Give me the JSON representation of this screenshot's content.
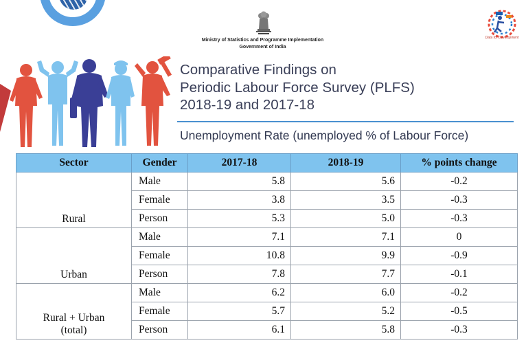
{
  "header": {
    "ministry_line1": "Ministry of Statistics and Programme Implementation",
    "ministry_line2": "Government of India",
    "nsso_tagline": "Data for Development"
  },
  "title": {
    "line1": "Comparative Findings on",
    "line2": "Periodic Labour Force Survey (PLFS)",
    "line3": "2018-19 and 2017-18"
  },
  "subtitle": "Unemployment Rate (unemployed % of Labour Force)",
  "colors": {
    "header_bg": "#7fc3ee",
    "rule": "#4a90d0",
    "title_text": "#3a3f58"
  },
  "table": {
    "headers": [
      "Sector",
      "Gender",
      "2017-18",
      "2018-19",
      "% points change"
    ],
    "groups": [
      {
        "sector": "Rural",
        "rows": [
          {
            "gender": "Male",
            "y2017": "5.8",
            "y2018": "5.6",
            "change": "-0.2"
          },
          {
            "gender": "Female",
            "y2017": "3.8",
            "y2018": "3.5",
            "change": "-0.3"
          },
          {
            "gender": "Person",
            "y2017": "5.3",
            "y2018": "5.0",
            "change": "-0.3"
          }
        ]
      },
      {
        "sector": "Urban",
        "rows": [
          {
            "gender": "Male",
            "y2017": "7.1",
            "y2018": "7.1",
            "change": "0"
          },
          {
            "gender": "Female",
            "y2017": "10.8",
            "y2018": "9.9",
            "change": "-0.9"
          },
          {
            "gender": "Person",
            "y2017": "7.8",
            "y2018": "7.7",
            "change": "-0.1"
          }
        ]
      },
      {
        "sector_line1": "Rural + Urban",
        "sector_line2": "(total)",
        "rows": [
          {
            "gender": "Male",
            "y2017": "6.2",
            "y2018": "6.0",
            "change": "-0.2"
          },
          {
            "gender": "Female",
            "y2017": "5.7",
            "y2018": "5.2",
            "change": "-0.5"
          },
          {
            "gender": "Person",
            "y2017": "6.1",
            "y2018": "5.8",
            "change": "-0.3"
          }
        ]
      }
    ]
  }
}
